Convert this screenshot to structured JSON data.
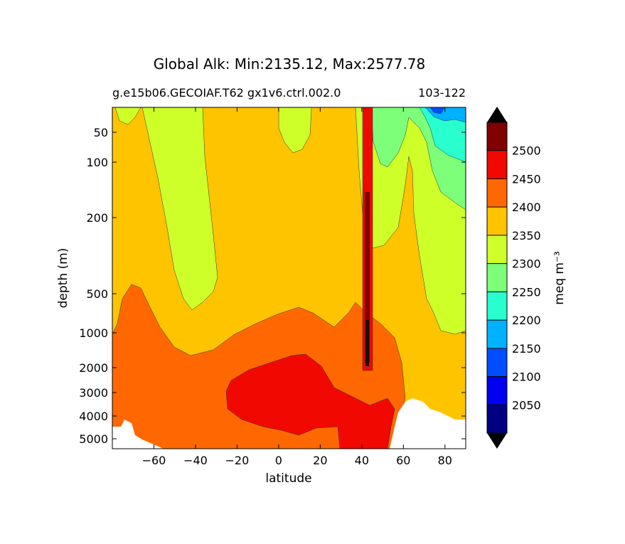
{
  "chart_data": {
    "type": "contourf",
    "title": "Global Alk: Min:2135.12, Max:2577.78",
    "subtitle_left": "g.e15b06.GECOIAF.T62 gx1v6.ctrl.002.0",
    "subtitle_right": "103-122",
    "xlabel": "latitude",
    "ylabel": "depth (m)",
    "xlim": [
      -80,
      90
    ],
    "x_ticks": [
      -60,
      -40,
      -20,
      0,
      20,
      40,
      60,
      80
    ],
    "x_tick_labels": [
      "−60",
      "−40",
      "−20",
      "0",
      "20",
      "40",
      "60",
      "80"
    ],
    "y_ticks": [
      50,
      100,
      200,
      500,
      1000,
      2000,
      3000,
      4000,
      5000
    ],
    "y_tick_labels": [
      "50",
      "100",
      "200",
      "500",
      "1000",
      "2000",
      "3000",
      "4000",
      "5000"
    ],
    "y_inverted": true,
    "colorbar": {
      "label": "meq m⁻³",
      "levels": [
        2050,
        2100,
        2150,
        2200,
        2250,
        2300,
        2350,
        2400,
        2450,
        2500
      ],
      "level_labels": [
        "2050",
        "2100",
        "2150",
        "2200",
        "2250",
        "2300",
        "2350",
        "2400",
        "2450",
        "2500"
      ],
      "colors": [
        "#000080",
        "#0000f1",
        "#004dff",
        "#00b1ff",
        "#29ffce",
        "#7dff7a",
        "#ceff29",
        "#ffc400",
        "#ff6800",
        "#f10800",
        "#800000"
      ],
      "extend": "both"
    },
    "features": [
      {
        "name": "deep-max-core",
        "value_range": [
          2450,
          2500
        ],
        "lat_range": [
          -20,
          50
        ],
        "depth_range": [
          2000,
          5000
        ]
      },
      {
        "name": "deep-orange",
        "value_range": [
          2400,
          2450
        ],
        "lat_range": [
          -75,
          65
        ],
        "depth_range": [
          700,
          5500
        ]
      },
      {
        "name": "surface-green-north",
        "value_range": [
          2250,
          2300
        ],
        "lat_range": [
          45,
          90
        ],
        "depth_range": [
          10,
          200
        ]
      },
      {
        "name": "arctic-surface-low",
        "value_range": [
          2150,
          2250
        ],
        "lat_range": [
          68,
          90
        ],
        "depth_range": [
          10,
          150
        ]
      },
      {
        "name": "mediterranean-tongue",
        "value_range": [
          2450,
          2577.78
        ],
        "lat_range": [
          40,
          45
        ],
        "depth_range": [
          10,
          2000
        ]
      }
    ],
    "land_mask": "white",
    "grid": false
  }
}
